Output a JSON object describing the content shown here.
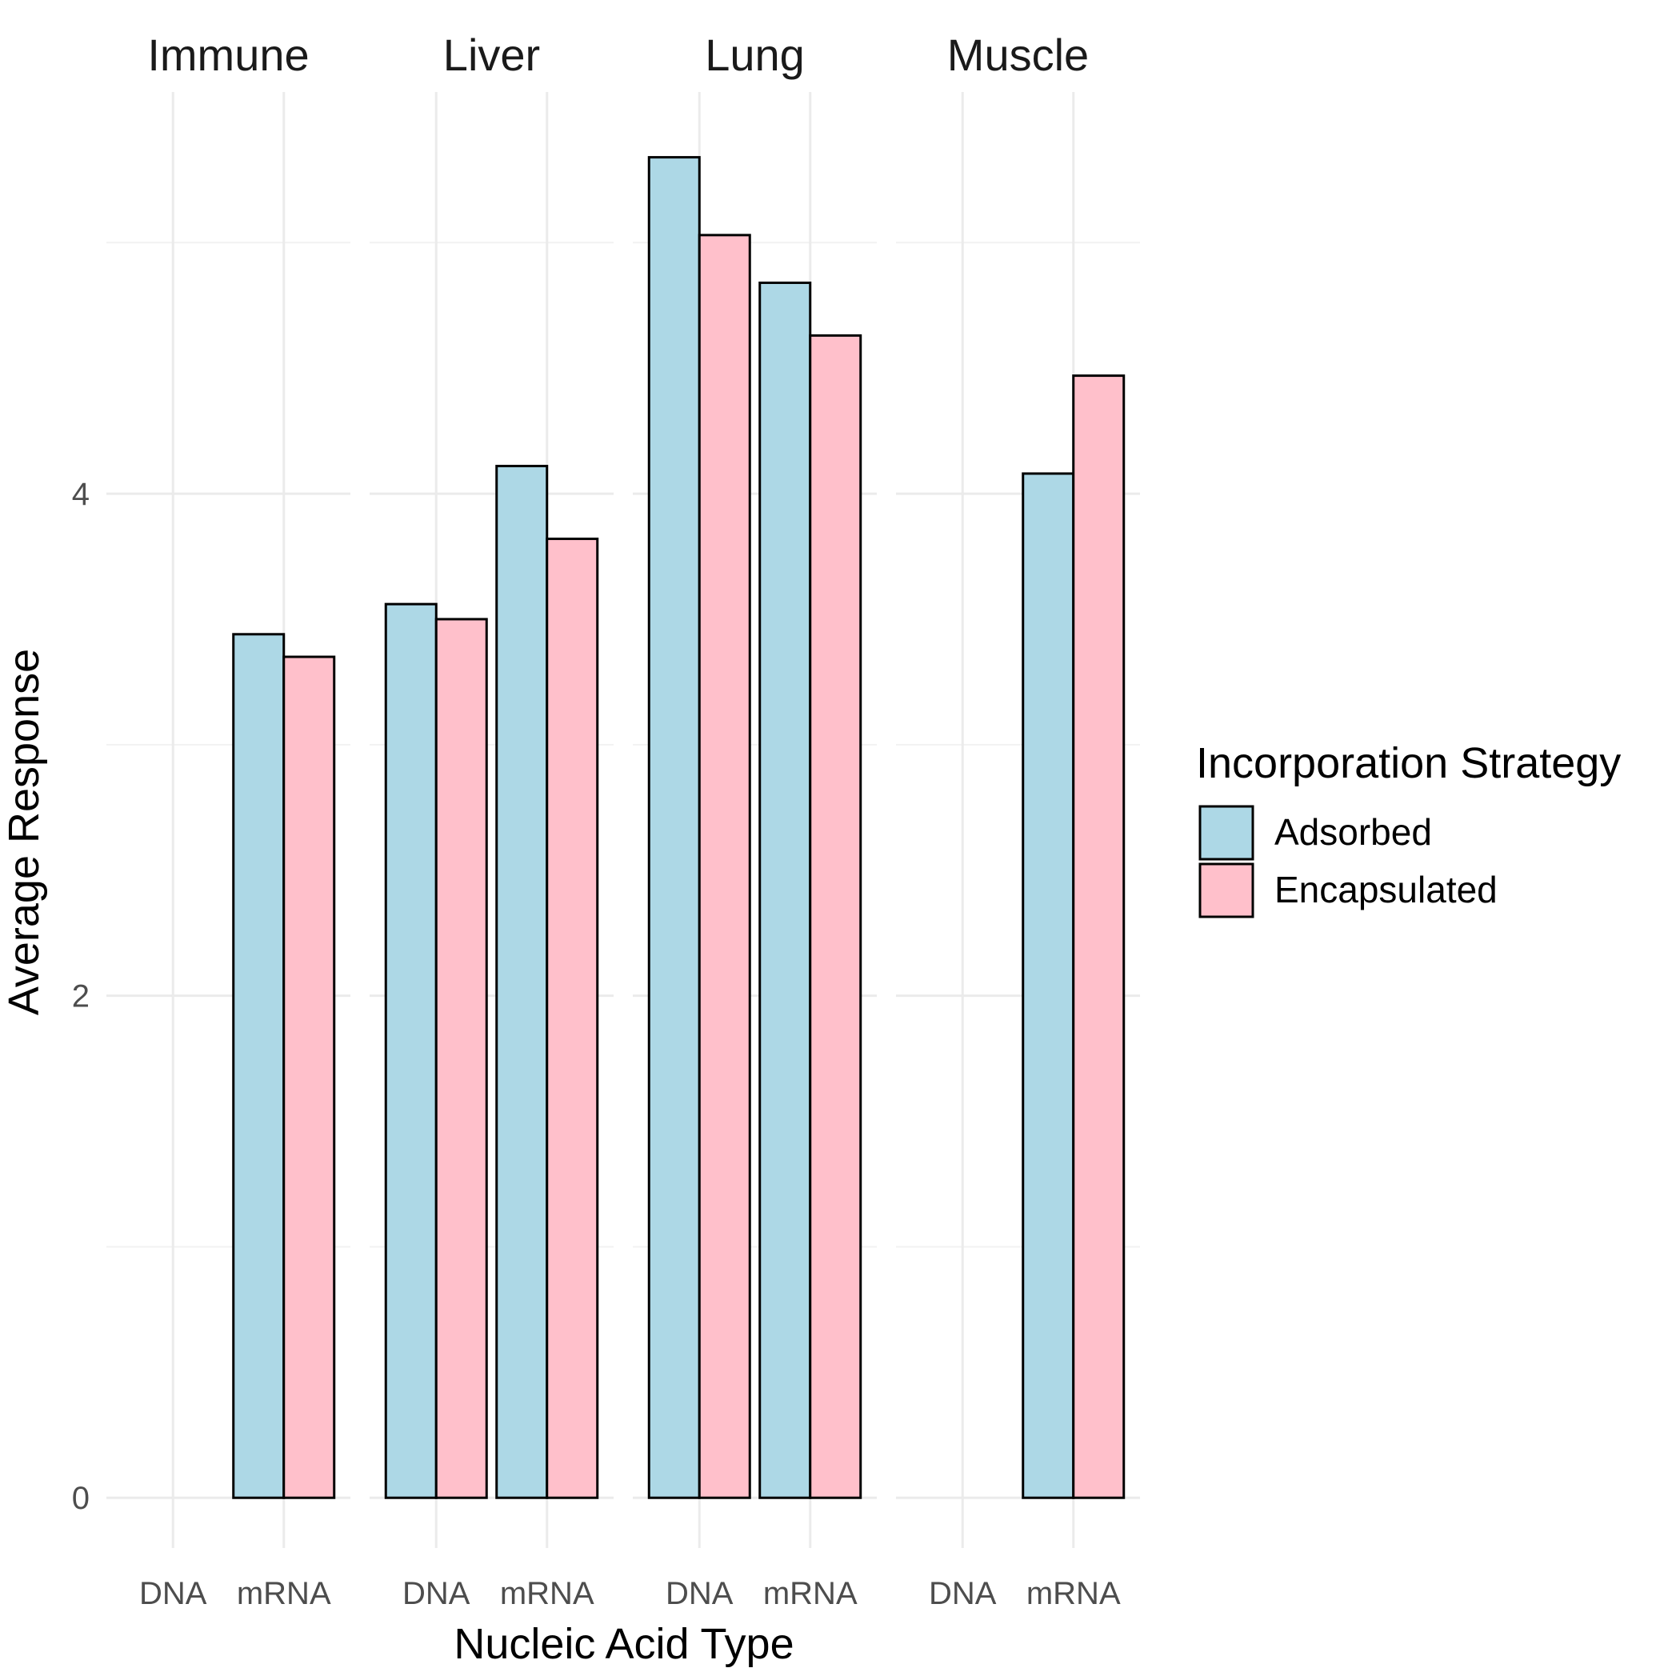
{
  "chart_data": {
    "type": "bar",
    "facets": [
      "Immune",
      "Liver",
      "Lung",
      "Muscle"
    ],
    "categories": [
      "DNA",
      "mRNA"
    ],
    "series": [
      {
        "name": "Adsorbed",
        "color": "#ADD8E6",
        "values": {
          "Immune": [
            null,
            3.44
          ],
          "Liver": [
            3.56,
            4.11
          ],
          "Lung": [
            5.34,
            4.84
          ],
          "Muscle": [
            null,
            4.08
          ]
        }
      },
      {
        "name": "Encapsulated",
        "color": "#FFC0CB",
        "values": {
          "Immune": [
            null,
            3.35
          ],
          "Liver": [
            3.5,
            3.82
          ],
          "Lung": [
            5.03,
            4.63
          ],
          "Muscle": [
            null,
            4.47
          ]
        }
      }
    ],
    "xlabel": "Nucleic Acid Type",
    "ylabel": "Average Response",
    "ylim": [
      -0.2,
      5.6
    ],
    "y_ticks": [
      0,
      2,
      4
    ],
    "y_tick_labels": [
      "0",
      "2",
      "4"
    ],
    "legend_title": "Incorporation Strategy",
    "legend_position": "right",
    "grid": true
  }
}
